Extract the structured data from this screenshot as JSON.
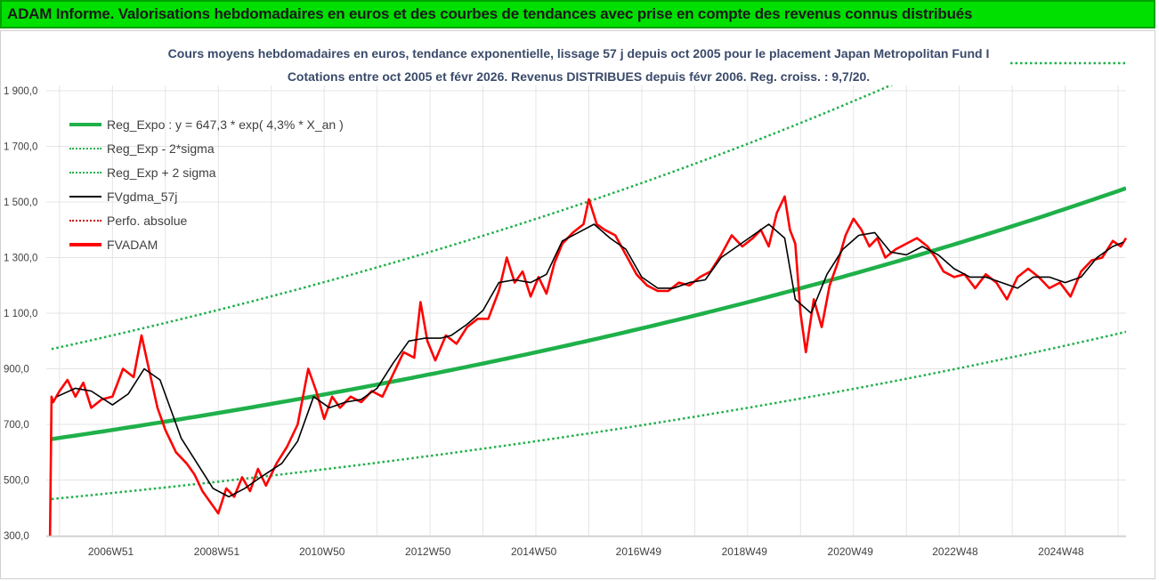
{
  "header": {
    "title": "ADAM Informe. Valorisations hebdomadaires en euros et des courbes de tendances avec prise en compte des revenus connus distribués"
  },
  "chart_data": {
    "type": "line",
    "title_line1": "Cours moyens hebdomadaires en euros, tendance exponentielle, lissage 57 j depuis oct 2005 pour le placement Japan Metropolitan Fund I",
    "title_line2": "Cotations entre oct 2005 et févr 2026. Revenus DISTRIBUES depuis févr 2006. Reg. croiss. : 9,7/20.",
    "ylim": [
      300,
      1950
    ],
    "y_ticks": [
      "1 900,0",
      "1 700,0",
      "1 500,0",
      "1 300,0",
      "1 100,0",
      "900,0",
      "700,0",
      "500,0",
      "300,0"
    ],
    "y_tick_values": [
      1900,
      1700,
      1500,
      1300,
      1100,
      900,
      700,
      500,
      300
    ],
    "x_range": [
      2005.75,
      2026.15
    ],
    "x_ticks": [
      {
        "label": "2006W51",
        "x": 2006.97
      },
      {
        "label": "2008W51",
        "x": 2008.97
      },
      {
        "label": "2010W50",
        "x": 2010.96
      },
      {
        "label": "2012W50",
        "x": 2012.96
      },
      {
        "label": "2014W50",
        "x": 2014.96
      },
      {
        "label": "2016W49",
        "x": 2016.94
      },
      {
        "label": "2018W49",
        "x": 2018.94
      },
      {
        "label": "2020W49",
        "x": 2020.94
      },
      {
        "label": "2022W48",
        "x": 2022.92
      },
      {
        "label": "2024W48",
        "x": 2024.92
      }
    ],
    "grid": true,
    "legend_placement": "top-left",
    "regression": {
      "a": 647.3,
      "rate": 0.043,
      "sigma_factor": 1.5
    },
    "series": [
      {
        "name": "Reg_Expo : y = 647,3 * exp( 4,3% *  X_an )",
        "color": "#1fb04a",
        "style": "solid-thick"
      },
      {
        "name": "Reg_Exp - 2*sigma",
        "color": "#1fb04a",
        "style": "dotted"
      },
      {
        "name": "Reg_Exp + 2 sigma",
        "color": "#1fb04a",
        "style": "dotted"
      },
      {
        "name": "FVgdma_57j",
        "color": "#000000",
        "style": "solid",
        "x": [
          2005.95,
          2006.3,
          2006.6,
          2007.0,
          2007.3,
          2007.6,
          2007.9,
          2008.3,
          2008.6,
          2008.9,
          2009.2,
          2009.5,
          2009.8,
          2010.2,
          2010.5,
          2010.8,
          2011.1,
          2011.4,
          2011.7,
          2012.0,
          2012.3,
          2012.6,
          2012.9,
          2013.2,
          2013.4,
          2013.7,
          2014.0,
          2014.3,
          2014.6,
          2014.9,
          2015.2,
          2015.5,
          2015.8,
          2016.1,
          2016.4,
          2016.7,
          2017.0,
          2017.3,
          2017.6,
          2017.9,
          2018.2,
          2018.5,
          2018.8,
          2019.1,
          2019.4,
          2019.7,
          2019.9,
          2020.2,
          2020.5,
          2020.8,
          2021.1,
          2021.4,
          2021.7,
          2022.0,
          2022.3,
          2022.6,
          2022.9,
          2023.2,
          2023.5,
          2023.8,
          2024.1,
          2024.4,
          2024.7,
          2025.0,
          2025.3,
          2025.6,
          2025.9,
          2026.1
        ],
        "values": [
          800,
          830,
          820,
          770,
          810,
          900,
          860,
          650,
          560,
          470,
          440,
          470,
          510,
          560,
          640,
          800,
          760,
          780,
          790,
          830,
          920,
          1000,
          1010,
          1010,
          1020,
          1060,
          1110,
          1210,
          1220,
          1210,
          1240,
          1360,
          1390,
          1420,
          1370,
          1330,
          1230,
          1190,
          1190,
          1210,
          1220,
          1300,
          1340,
          1380,
          1420,
          1370,
          1150,
          1100,
          1240,
          1330,
          1380,
          1390,
          1320,
          1310,
          1340,
          1310,
          1260,
          1230,
          1230,
          1210,
          1190,
          1230,
          1230,
          1210,
          1230,
          1300,
          1340,
          1355
        ]
      },
      {
        "name": "Perfo. absolue",
        "color": "#cc0000",
        "style": "dotted"
      },
      {
        "name": "FVADAM",
        "color": "#ff0000",
        "style": "solid",
        "x": [
          2005.82,
          2005.85,
          2005.88,
          2006.0,
          2006.15,
          2006.3,
          2006.45,
          2006.6,
          2006.8,
          2007.0,
          2007.2,
          2007.4,
          2007.55,
          2007.7,
          2007.85,
          2008.0,
          2008.2,
          2008.4,
          2008.55,
          2008.7,
          2008.85,
          2009.0,
          2009.15,
          2009.3,
          2009.45,
          2009.6,
          2009.75,
          2009.9,
          2010.1,
          2010.3,
          2010.5,
          2010.7,
          2010.85,
          2011.0,
          2011.15,
          2011.3,
          2011.5,
          2011.7,
          2011.9,
          2012.1,
          2012.3,
          2012.5,
          2012.7,
          2012.82,
          2012.95,
          2013.1,
          2013.3,
          2013.5,
          2013.7,
          2013.9,
          2014.1,
          2014.3,
          2014.45,
          2014.6,
          2014.75,
          2014.9,
          2015.05,
          2015.2,
          2015.35,
          2015.5,
          2015.7,
          2015.9,
          2016.0,
          2016.15,
          2016.3,
          2016.5,
          2016.7,
          2016.9,
          2017.1,
          2017.3,
          2017.5,
          2017.7,
          2017.9,
          2018.1,
          2018.3,
          2018.5,
          2018.7,
          2018.9,
          2019.1,
          2019.25,
          2019.4,
          2019.55,
          2019.7,
          2019.8,
          2019.9,
          2020.0,
          2020.1,
          2020.25,
          2020.4,
          2020.55,
          2020.7,
          2020.85,
          2021.0,
          2021.15,
          2021.3,
          2021.45,
          2021.6,
          2021.8,
          2022.0,
          2022.2,
          2022.4,
          2022.55,
          2022.7,
          2022.9,
          2023.1,
          2023.3,
          2023.5,
          2023.7,
          2023.9,
          2024.1,
          2024.3,
          2024.5,
          2024.7,
          2024.9,
          2025.1,
          2025.3,
          2025.5,
          2025.7,
          2025.9,
          2026.05,
          2026.15
        ],
        "values": [
          300,
          800,
          780,
          820,
          860,
          800,
          850,
          760,
          790,
          800,
          900,
          870,
          1020,
          890,
          760,
          680,
          600,
          560,
          520,
          460,
          420,
          380,
          470,
          440,
          510,
          460,
          540,
          480,
          560,
          620,
          700,
          900,
          820,
          720,
          800,
          760,
          800,
          780,
          820,
          800,
          880,
          960,
          940,
          1140,
          1000,
          930,
          1020,
          990,
          1050,
          1080,
          1080,
          1180,
          1300,
          1210,
          1250,
          1160,
          1230,
          1170,
          1280,
          1350,
          1390,
          1420,
          1510,
          1420,
          1400,
          1380,
          1310,
          1240,
          1200,
          1180,
          1180,
          1210,
          1200,
          1230,
          1250,
          1310,
          1380,
          1340,
          1370,
          1400,
          1340,
          1460,
          1520,
          1400,
          1350,
          1100,
          960,
          1150,
          1050,
          1200,
          1280,
          1380,
          1440,
          1400,
          1340,
          1370,
          1300,
          1330,
          1350,
          1370,
          1340,
          1300,
          1250,
          1230,
          1240,
          1190,
          1240,
          1210,
          1150,
          1230,
          1260,
          1230,
          1190,
          1210,
          1160,
          1250,
          1290,
          1300,
          1360,
          1340,
          1370
        ]
      }
    ],
    "legend": [
      {
        "label": "Reg_Expo : y = 647,3 * exp( 4,3% *  X_an )",
        "color": "#1fb04a",
        "style": "solid-thick"
      },
      {
        "label": "Reg_Exp - 2*sigma",
        "color": "#1fb04a",
        "style": "dotted"
      },
      {
        "label": "Reg_Exp + 2 sigma",
        "color": "#1fb04a",
        "style": "dotted"
      },
      {
        "label": "FVgdma_57j",
        "color": "#000000",
        "style": "solid"
      },
      {
        "label": "Perfo. absolue",
        "color": "#cc0000",
        "style": "dotted"
      },
      {
        "label": "FVADAM",
        "color": "#ff0000",
        "style": "solid-thick"
      }
    ]
  }
}
